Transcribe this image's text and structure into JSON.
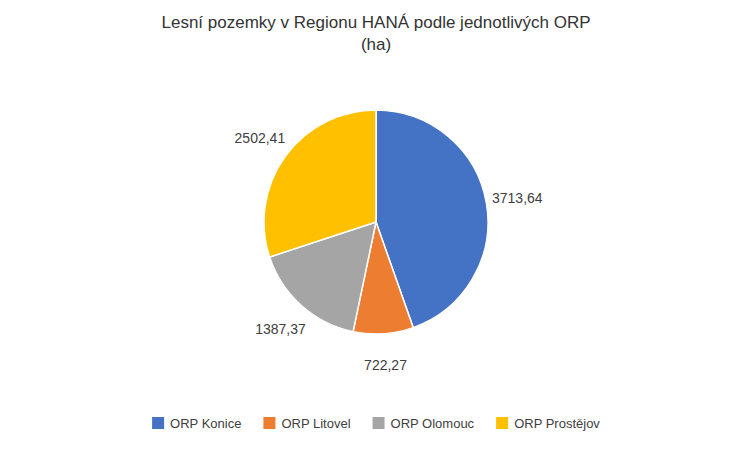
{
  "chart_data": {
    "type": "pie",
    "title": "Lesní pozemky v Regionu HANÁ podle jednotlivých ORP\n(ha)",
    "categories": [
      "ORP Konice",
      "ORP Litovel",
      "ORP Olomouc",
      "ORP Prostějov"
    ],
    "values": [
      3713.64,
      722.27,
      1387.37,
      2502.41
    ],
    "value_labels": [
      "3713,64",
      "722,27",
      "1387,37",
      "2502,41"
    ],
    "colors": [
      "#4472C4",
      "#ED7D31",
      "#A5A5A5",
      "#FFC000"
    ],
    "data_labels": true,
    "legend": "bottom"
  }
}
